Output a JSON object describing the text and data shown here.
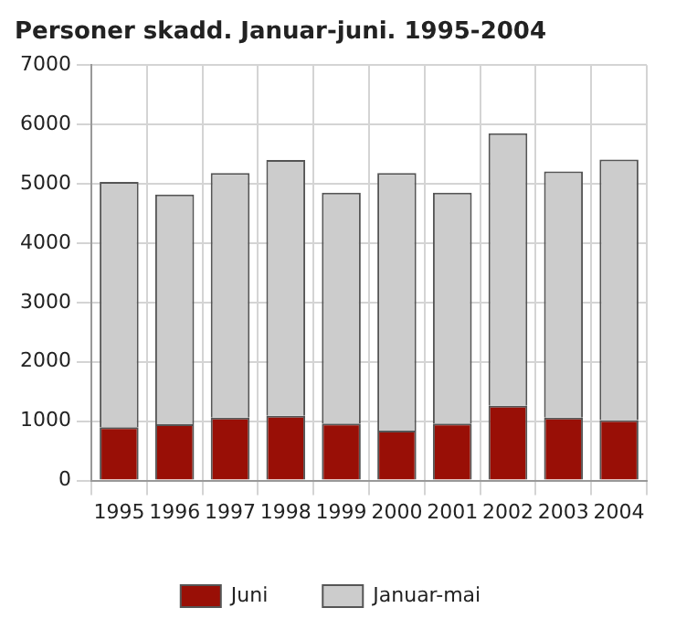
{
  "chart_data": {
    "type": "bar",
    "title": "Personer skadd. Januar-juni. 1995-2004",
    "categories": [
      "1995",
      "1996",
      "1997",
      "1998",
      "1999",
      "2000",
      "2001",
      "2002",
      "2003",
      "2004"
    ],
    "stacked": true,
    "series": [
      {
        "name": "Juni",
        "color": "#990f06",
        "values": [
          900,
          950,
          1060,
          1090,
          960,
          840,
          960,
          1260,
          1060,
          1020
        ]
      },
      {
        "name": "Januar-mai",
        "color": "#cccccc",
        "values": [
          4130,
          3870,
          4120,
          4310,
          3890,
          4340,
          3890,
          4590,
          4150,
          4390
        ]
      }
    ],
    "ylim": [
      0,
      7000
    ],
    "yticks": [
      0,
      1000,
      2000,
      3000,
      4000,
      5000,
      6000,
      7000
    ],
    "grid": true,
    "legend": "bottom"
  }
}
